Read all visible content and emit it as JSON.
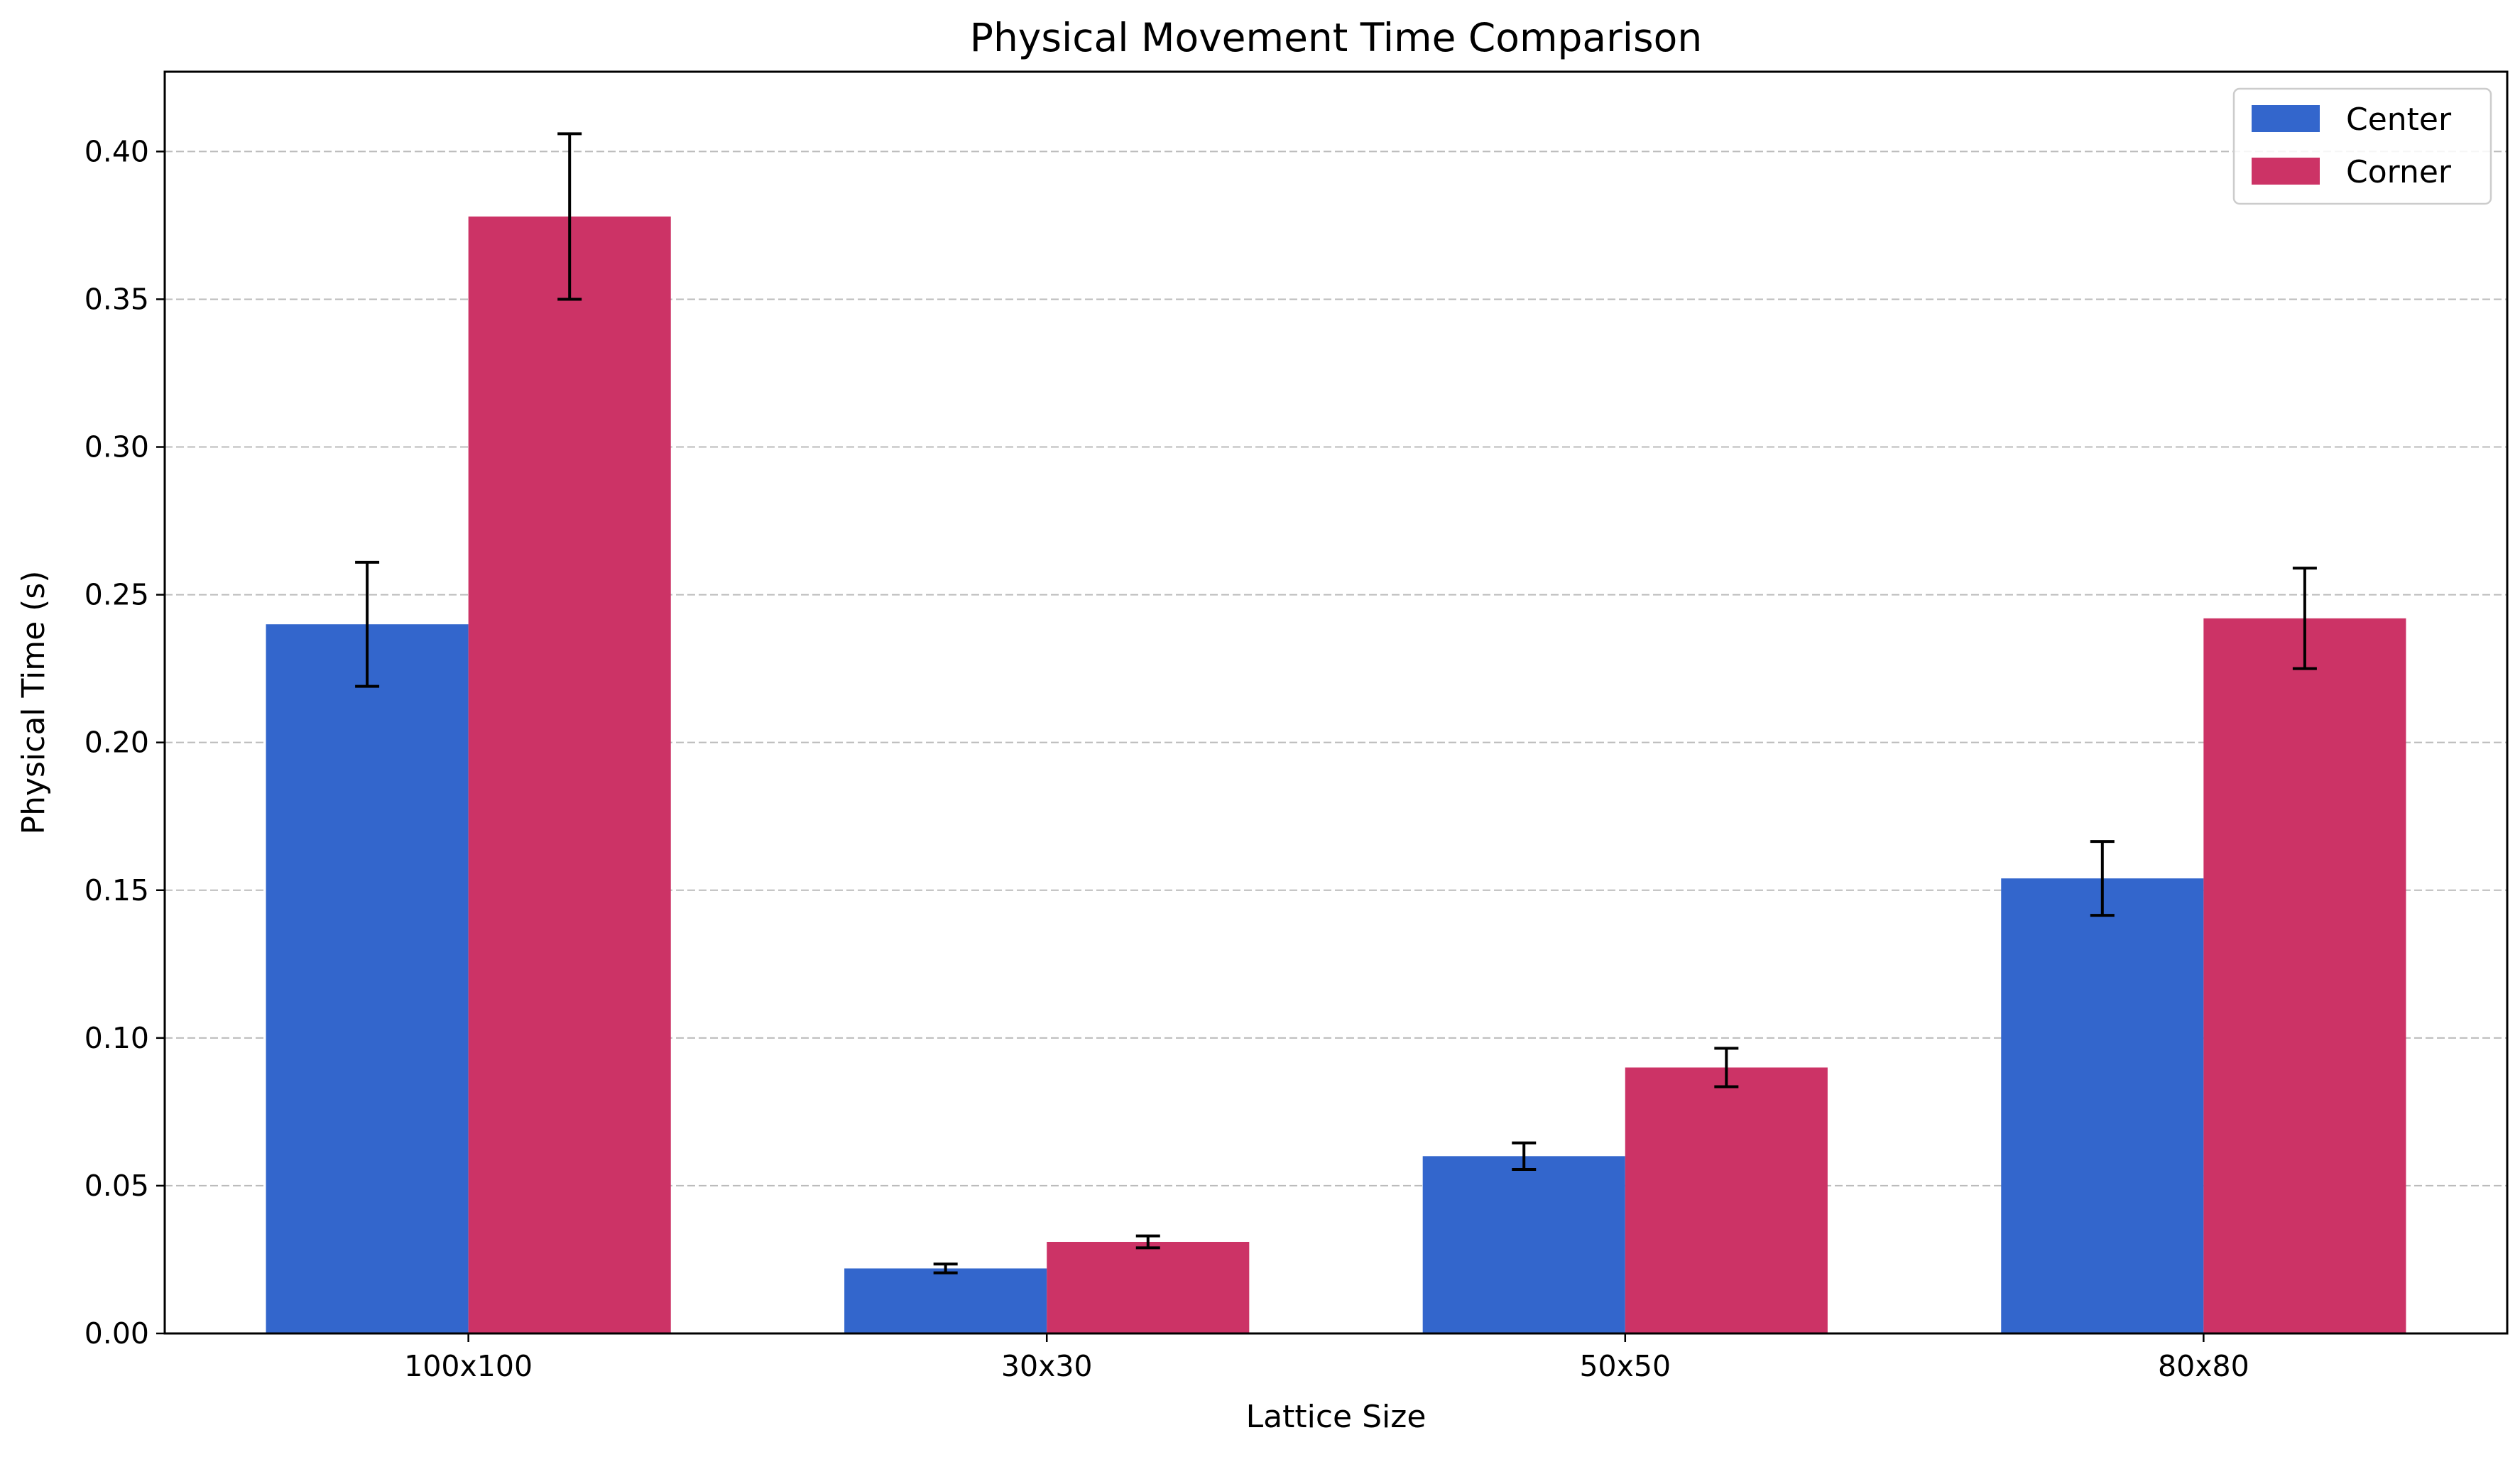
{
  "chart_data": {
    "type": "bar",
    "title": "Physical Movement Time Comparison",
    "xlabel": "Lattice Size",
    "ylabel": "Physical Time (s)",
    "categories": [
      "100x100",
      "30x30",
      "50x50",
      "80x80"
    ],
    "series": [
      {
        "name": "Center",
        "color": "#3366cc",
        "values": [
          0.24,
          0.022,
          0.06,
          0.154
        ],
        "errors": [
          0.021,
          0.0015,
          0.0045,
          0.0125
        ]
      },
      {
        "name": "Corner",
        "color": "#cc3366",
        "values": [
          0.378,
          0.031,
          0.09,
          0.242
        ],
        "errors": [
          0.028,
          0.002,
          0.0065,
          0.017
        ]
      }
    ],
    "ylim": [
      0,
      0.427
    ],
    "yticks": [
      0.0,
      0.05,
      0.1,
      0.15,
      0.2,
      0.25,
      0.3,
      0.35,
      0.4
    ],
    "ytick_labels": [
      "0.00",
      "0.05",
      "0.10",
      "0.15",
      "0.20",
      "0.25",
      "0.30",
      "0.35",
      "0.40"
    ],
    "grid": "y-dashed",
    "legend_position": "top-right"
  }
}
